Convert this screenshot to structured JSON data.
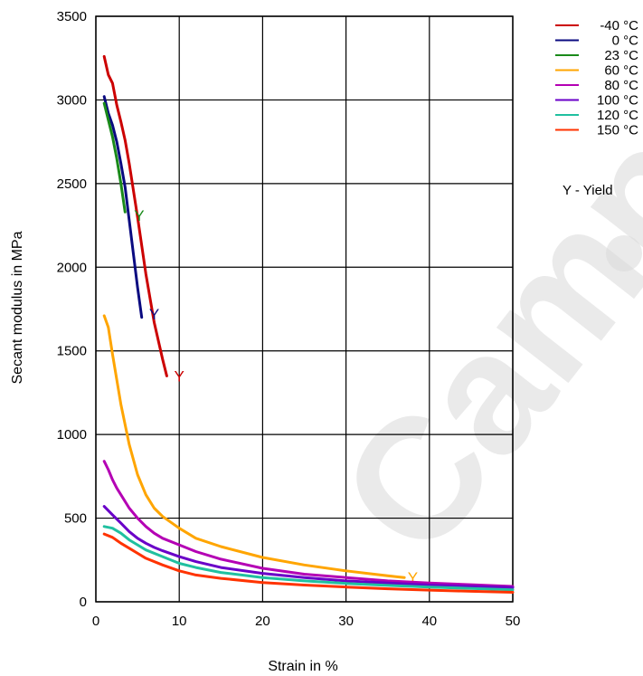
{
  "chart_data": {
    "type": "line",
    "xlabel": "Strain in %",
    "ylabel": "Secant modulus in MPa",
    "xlim": [
      0,
      50
    ],
    "ylim": [
      0,
      3500
    ],
    "xticks": [
      "0",
      "10",
      "20",
      "30",
      "40",
      "50"
    ],
    "yticks": [
      "0",
      "500",
      "1000",
      "1500",
      "2000",
      "2500",
      "3000",
      "3500"
    ],
    "grid": true,
    "legend_position": "top-right",
    "yield_note": "Y - Yield",
    "yield_symbol": "Y",
    "series": [
      {
        "name": "-40 °C",
        "color": "#cc0000",
        "x": [
          1,
          1.5,
          2,
          2.5,
          3,
          3.5,
          4,
          5,
          6,
          7,
          8,
          8.5
        ],
        "y": [
          3260,
          3150,
          3100,
          2970,
          2870,
          2760,
          2620,
          2300,
          1960,
          1670,
          1450,
          1350
        ],
        "yield": {
          "x": 10,
          "y": 1350
        }
      },
      {
        "name": "0 °C",
        "color": "#0a0a80",
        "x": [
          1,
          1.5,
          2,
          2.5,
          3,
          3.5,
          4,
          4.5,
          5,
          5.5
        ],
        "y": [
          3020,
          2920,
          2850,
          2750,
          2620,
          2480,
          2280,
          2080,
          1880,
          1700
        ],
        "yield": {
          "x": 7,
          "y": 1720
        }
      },
      {
        "name": "23 °C",
        "color": "#1a8a1a",
        "x": [
          1,
          1.5,
          2,
          2.5,
          3,
          3.5
        ],
        "y": [
          2980,
          2880,
          2780,
          2650,
          2500,
          2330
        ],
        "yield": {
          "x": 5.2,
          "y": 2310
        }
      },
      {
        "name": "60 °C",
        "color": "#ffa500",
        "x": [
          1,
          1.5,
          2,
          3,
          4,
          5,
          6,
          7,
          8,
          10,
          12,
          15,
          20,
          25,
          30,
          35,
          37
        ],
        "y": [
          1710,
          1640,
          1480,
          1180,
          940,
          760,
          640,
          560,
          510,
          440,
          380,
          330,
          265,
          220,
          185,
          155,
          145
        ],
        "yield": {
          "x": 38,
          "y": 145
        }
      },
      {
        "name": "80 °C",
        "color": "#b400b4",
        "x": [
          1,
          1.5,
          2,
          2.5,
          3,
          4,
          5,
          6,
          7,
          8,
          10,
          12,
          15,
          20,
          25,
          30,
          35,
          40,
          45,
          50
        ],
        "y": [
          840,
          790,
          730,
          680,
          640,
          560,
          500,
          450,
          410,
          380,
          340,
          300,
          255,
          200,
          165,
          145,
          125,
          112,
          102,
          92
        ]
      },
      {
        "name": "100 °C",
        "color": "#6a00c8",
        "x": [
          1,
          2,
          3,
          4,
          5,
          6,
          7,
          8,
          10,
          12,
          15,
          20,
          25,
          30,
          35,
          40,
          45,
          50
        ],
        "y": [
          570,
          520,
          470,
          420,
          380,
          350,
          325,
          305,
          270,
          240,
          205,
          170,
          145,
          125,
          112,
          100,
          92,
          85
        ]
      },
      {
        "name": "120 °C",
        "color": "#20c0a0",
        "x": [
          1,
          2,
          3,
          4,
          5,
          6,
          8,
          10,
          12,
          15,
          20,
          25,
          30,
          35,
          40,
          45,
          50
        ],
        "y": [
          450,
          440,
          410,
          370,
          340,
          310,
          270,
          230,
          205,
          175,
          145,
          125,
          110,
          98,
          88,
          80,
          72
        ]
      },
      {
        "name": "150 °C",
        "color": "#ff3300",
        "x": [
          1,
          2,
          3,
          4,
          5,
          6,
          8,
          10,
          12,
          15,
          20,
          25,
          30,
          35,
          40,
          45,
          50
        ],
        "y": [
          405,
          385,
          350,
          320,
          290,
          260,
          220,
          185,
          160,
          140,
          115,
          100,
          88,
          78,
          70,
          63,
          57
        ]
      }
    ]
  },
  "watermark": "Campus Plastics"
}
